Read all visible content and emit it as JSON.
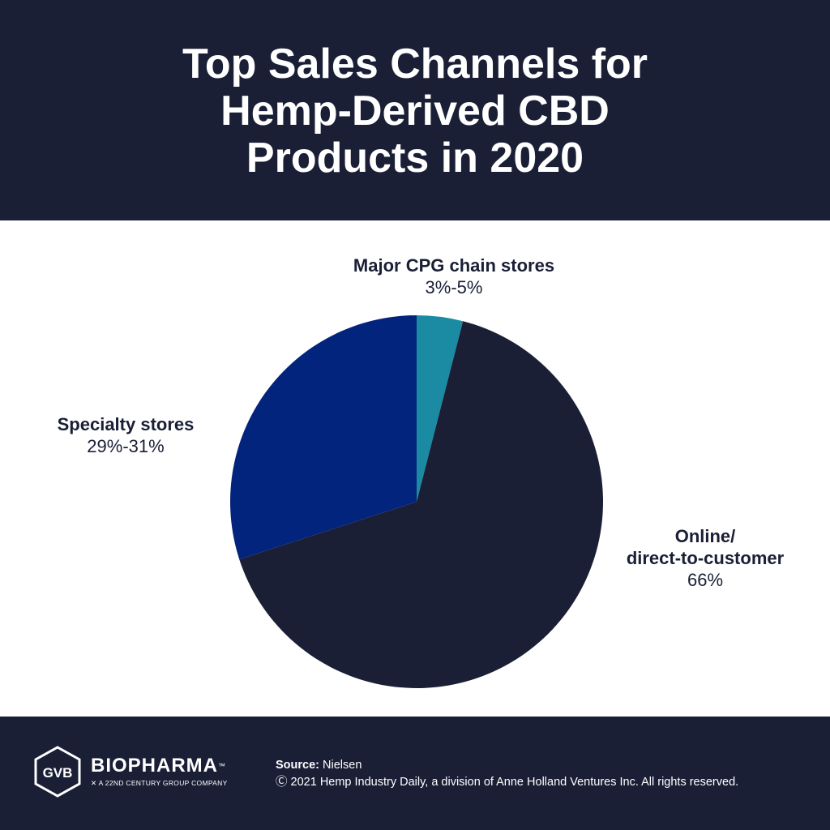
{
  "header": {
    "title_lines": [
      "Top Sales Channels for",
      "Hemp-Derived CBD",
      "Products in 2020"
    ]
  },
  "chart_data": {
    "type": "pie",
    "title": "Top Sales Channels for Hemp-Derived CBD Products in 2020",
    "slices": [
      {
        "name": "Major CPG chain stores",
        "label": "3%-5%",
        "value": 4,
        "color": "#1b8aa3"
      },
      {
        "name": "Online/ direct-to-customer",
        "label": "66%",
        "value": 66,
        "color": "#1a1f36"
      },
      {
        "name": "Specialty stores",
        "label": "29%-31%",
        "value": 30,
        "color": "#03247c"
      }
    ]
  },
  "labels": {
    "major": {
      "line1": "Major CPG chain stores",
      "pct": "3%-5%"
    },
    "specialty": {
      "line1": "Specialty stores",
      "pct": "29%-31%"
    },
    "online": {
      "line1": "Online/",
      "line2": "direct-to-customer",
      "pct": "66%"
    }
  },
  "footer": {
    "logo_mark": "GVB",
    "brand": "BIOPHARMA",
    "tm": "™",
    "tagline": "A 22ND CENTURY GROUP COMPANY",
    "source_label": "Source:",
    "source_value": "Nielsen",
    "copyright": "Ⓒ 2021 Hemp Industry Daily, a division of Anne Holland Ventures Inc. All rights reserved."
  }
}
